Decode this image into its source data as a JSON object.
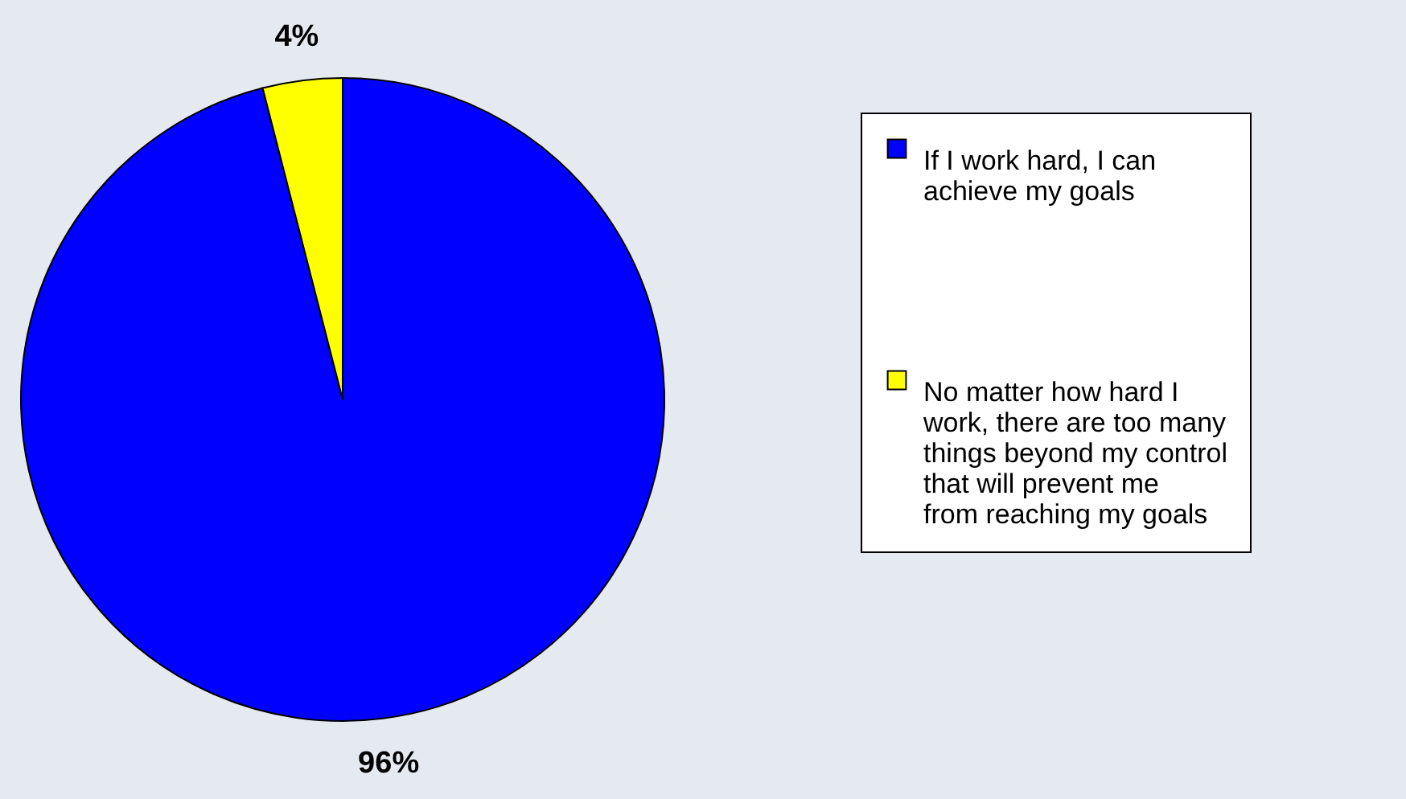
{
  "chart_data": {
    "type": "pie",
    "categories": [
      "If I work hard, I can achieve my goals",
      "No matter how hard I work, there are too many things beyond my control that will prevent me from reaching my goals"
    ],
    "values": [
      96,
      4
    ],
    "colors": [
      "#0000ff",
      "#ffff00"
    ],
    "value_labels": [
      "96%",
      "4%"
    ],
    "legend": "right"
  }
}
